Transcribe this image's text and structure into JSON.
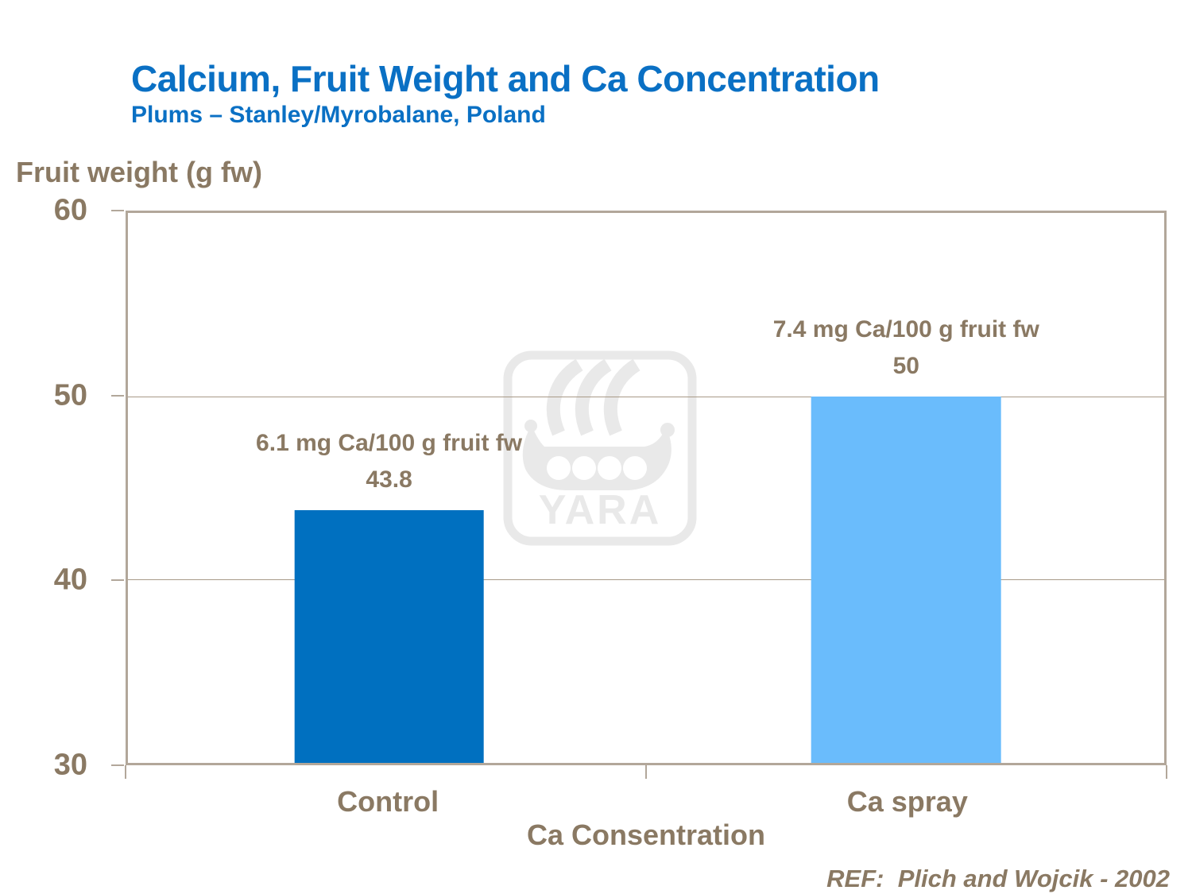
{
  "header": {
    "title": "Calcium, Fruit Weight and Ca Concentration",
    "subtitle": "Plums – Stanley/Myrobalane, Poland"
  },
  "chart_data": {
    "type": "bar",
    "title": "Calcium, Fruit Weight and Ca Concentration",
    "subtitle": "Plums – Stanley/Myrobalane, Poland",
    "ylabel": "Fruit weight (g fw)",
    "xlabel": "Ca Consentration",
    "categories": [
      "Control",
      "Ca spray"
    ],
    "values": [
      43.8,
      50
    ],
    "value_labels": [
      "43.8",
      "50"
    ],
    "annotations": [
      "6.1 mg Ca/100 g fruit fw",
      "7.4 mg Ca/100 g fruit fw"
    ],
    "ylim": [
      30,
      60
    ],
    "yticks": [
      60,
      50,
      40,
      30
    ],
    "grid": true,
    "legend": "none",
    "bar_colors": [
      "#0070c0",
      "#6abcfc"
    ]
  },
  "watermark": {
    "label": "YARA",
    "icon": "viking-ship-icon"
  },
  "footer": {
    "reference": "REF:  Plich and Wojcik - 2002"
  },
  "colors": {
    "title_blue": "#0a70c4",
    "text_brown": "#8a7963",
    "axis": "#b2a79a",
    "gridline": "#a89a87",
    "bar_control": "#0070c0",
    "bar_ca_spray": "#6abcfc",
    "watermark_gray": "#e9e9e9"
  }
}
